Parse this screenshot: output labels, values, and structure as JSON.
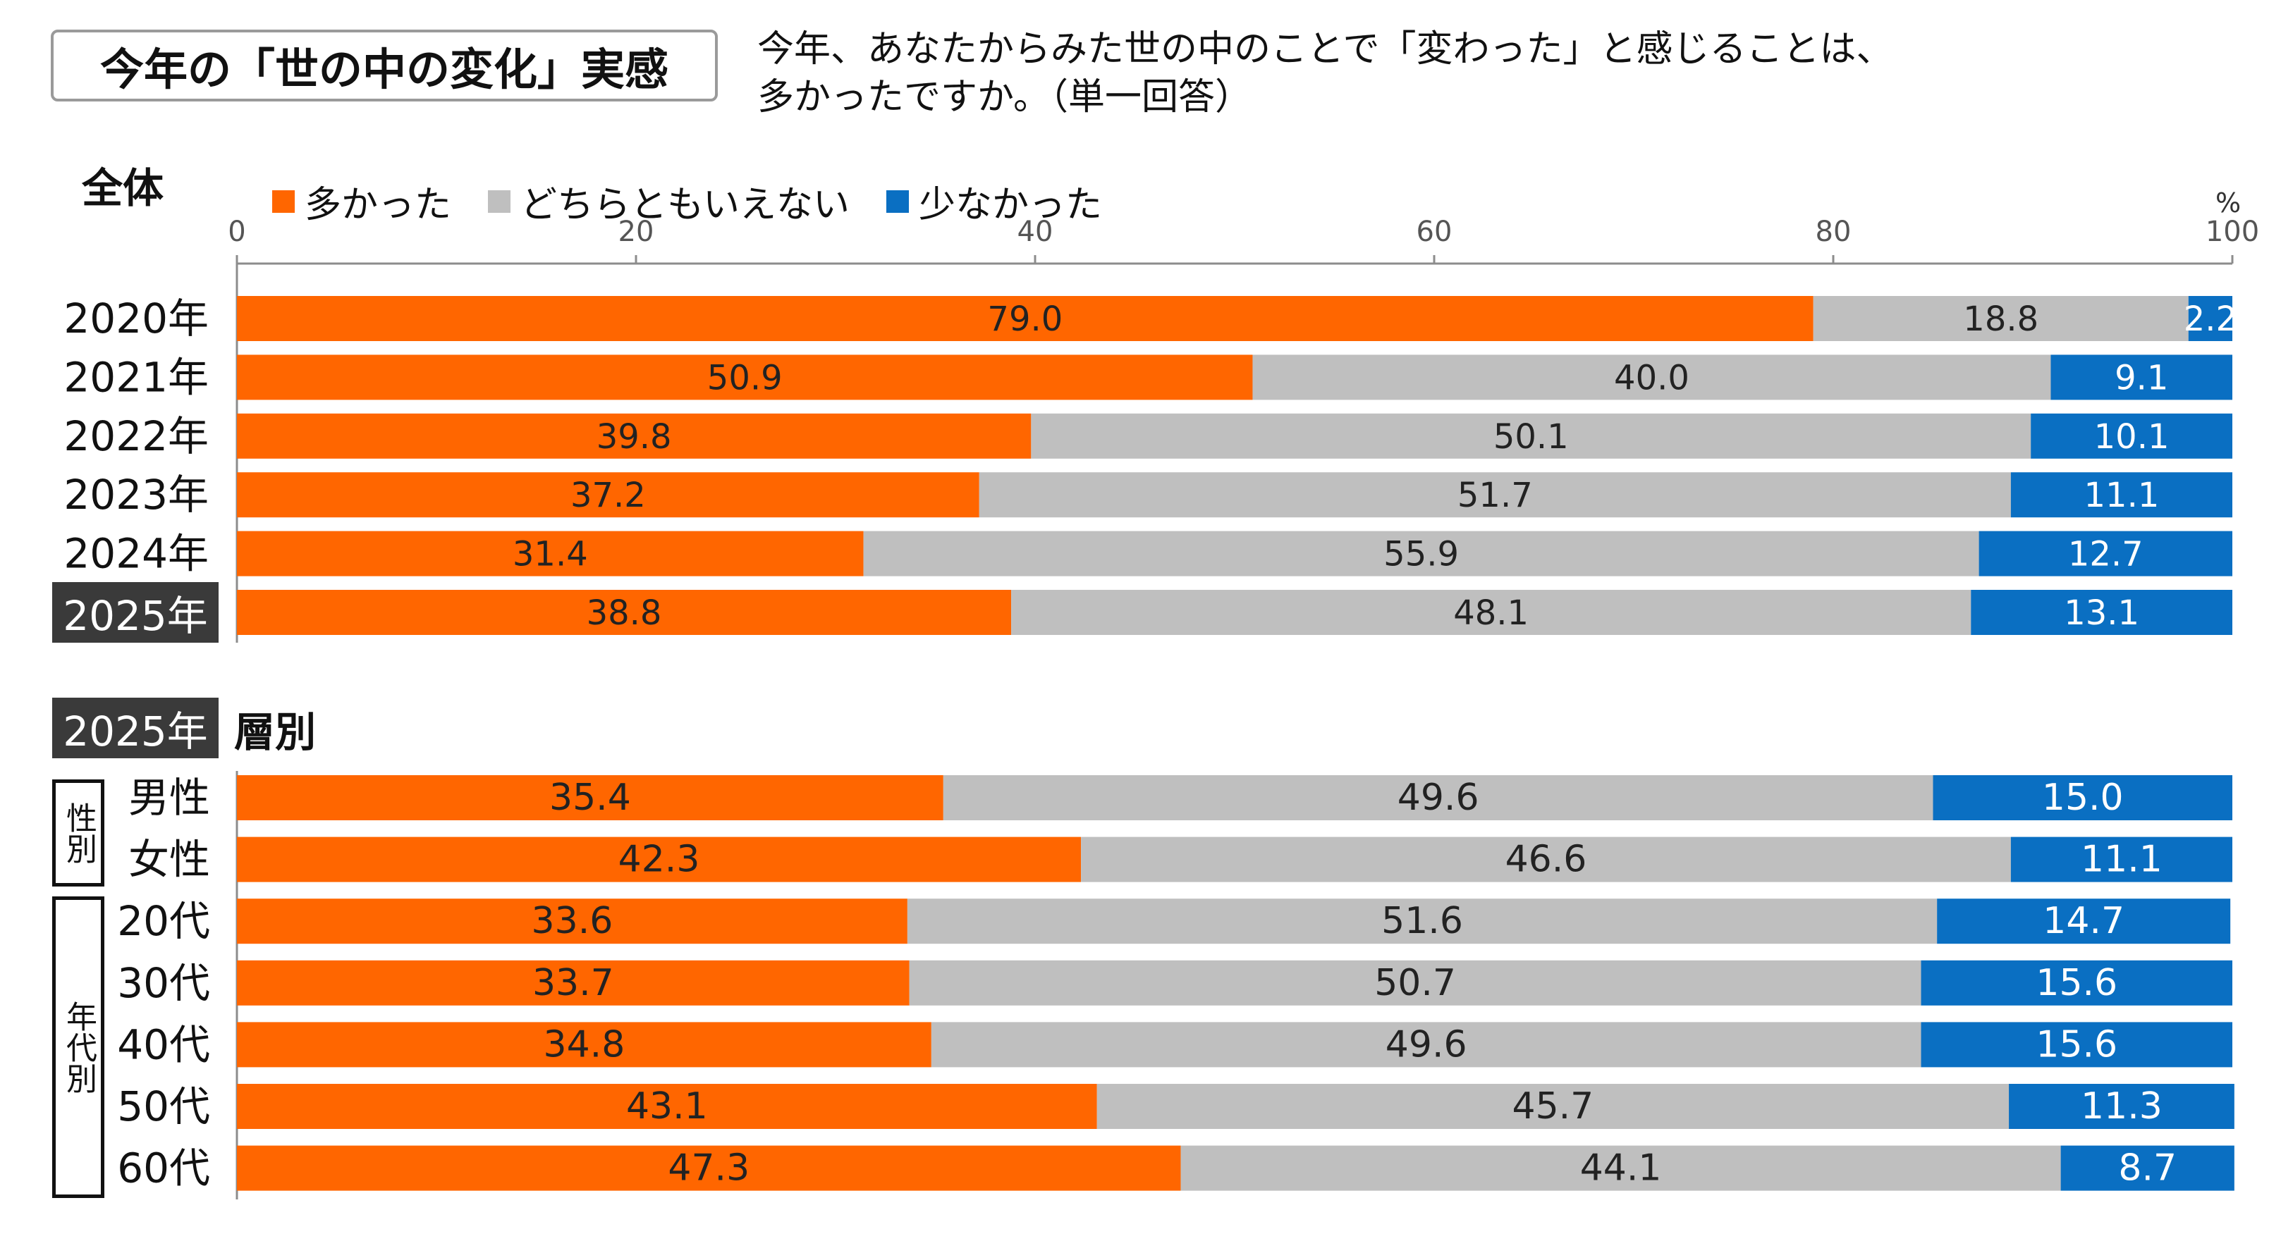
{
  "header": {
    "title": "今年の「世の中の変化」実感",
    "question_line1": "今年、あなたからみた世の中のことで「変わった」と感じることは、",
    "question_line2": "多かったですか。（単一回答）"
  },
  "sections": {
    "overall_label": "全体",
    "breakdown_year": "2025年",
    "breakdown_label": "層別",
    "gender_group": "性別",
    "age_group": "年代別"
  },
  "axis": {
    "unit": "%"
  },
  "colors": {
    "many": "#ff6600",
    "neutral": "#bfbfbf",
    "few": "#0a6fc2"
  },
  "chart_data": {
    "type": "bar",
    "orientation": "horizontal",
    "stacked": true,
    "xlim": [
      0,
      100
    ],
    "xticks": [
      0,
      20,
      40,
      60,
      80,
      100
    ],
    "legend": [
      "多かった",
      "どちらともいえない",
      "少なかった"
    ],
    "legend_placement": "top",
    "groups": [
      {
        "name": "全体",
        "categories": [
          "2020年",
          "2021年",
          "2022年",
          "2023年",
          "2024年",
          "2025年"
        ],
        "highlight": "2025年",
        "series": [
          {
            "name": "多かった",
            "values": [
              79.0,
              50.9,
              39.8,
              37.2,
              31.4,
              38.8
            ]
          },
          {
            "name": "どちらともいえない",
            "values": [
              18.8,
              40.0,
              50.1,
              51.7,
              55.9,
              48.1
            ]
          },
          {
            "name": "少なかった",
            "values": [
              2.2,
              9.1,
              10.1,
              11.1,
              12.7,
              13.1
            ]
          }
        ]
      },
      {
        "name": "層別",
        "categories": [
          "男性",
          "女性",
          "20代",
          "30代",
          "40代",
          "50代",
          "60代"
        ],
        "series": [
          {
            "name": "多かった",
            "values": [
              35.4,
              42.3,
              33.6,
              33.7,
              34.8,
              43.1,
              47.3
            ]
          },
          {
            "name": "どちらともいえない",
            "values": [
              49.6,
              46.6,
              51.6,
              50.7,
              49.6,
              45.7,
              44.1
            ]
          },
          {
            "name": "少なかった",
            "values": [
              15.0,
              11.1,
              14.7,
              15.6,
              15.6,
              11.3,
              8.7
            ]
          }
        ]
      }
    ]
  }
}
